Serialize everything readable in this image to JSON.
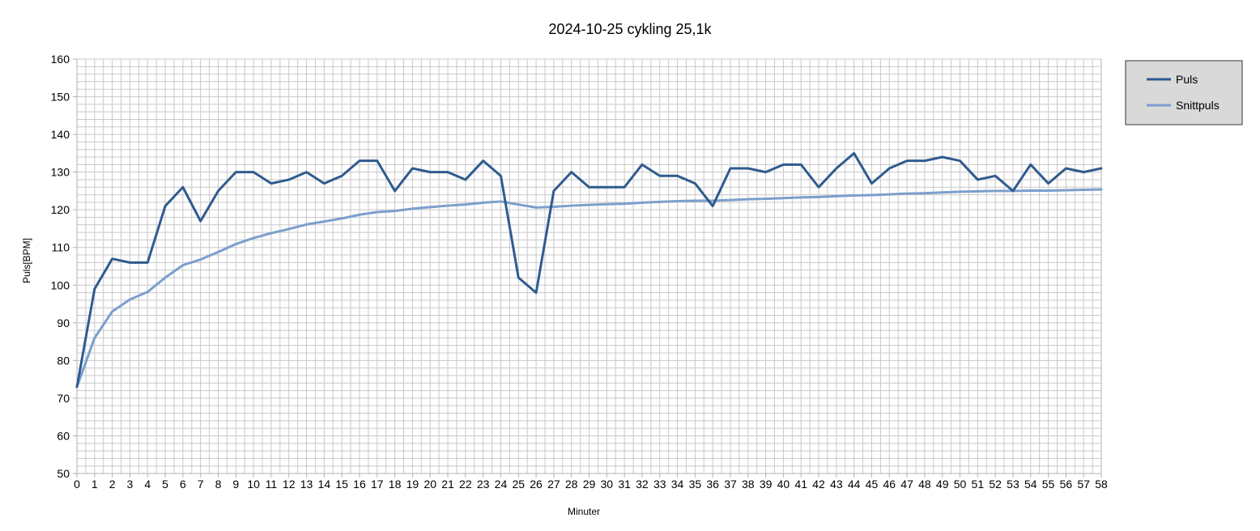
{
  "chart_data": {
    "type": "line",
    "title": "2024-10-25 cykling 25,1k",
    "xlabel": "Minuter",
    "ylabel": "Puls[BPM]",
    "x": [
      0,
      1,
      2,
      3,
      4,
      5,
      6,
      7,
      8,
      9,
      10,
      11,
      12,
      13,
      14,
      15,
      16,
      17,
      18,
      19,
      20,
      21,
      22,
      23,
      24,
      25,
      26,
      27,
      28,
      29,
      30,
      31,
      32,
      33,
      34,
      35,
      36,
      37,
      38,
      39,
      40,
      41,
      42,
      43,
      44,
      45,
      46,
      47,
      48,
      49,
      50,
      51,
      52,
      53,
      54,
      55,
      56,
      57,
      58
    ],
    "xlim": [
      0,
      58
    ],
    "ylim": [
      50,
      160
    ],
    "y_ticks": [
      50,
      60,
      70,
      80,
      90,
      100,
      110,
      120,
      130,
      140,
      150,
      160
    ],
    "grid": true,
    "legend_position": "right",
    "series": [
      {
        "name": "Puls",
        "color": "#2f5b8e",
        "values": [
          73,
          99,
          107,
          106,
          106,
          121,
          126,
          117,
          125,
          130,
          130,
          127,
          128,
          130,
          127,
          129,
          133,
          133,
          125,
          131,
          130,
          130,
          128,
          133,
          129,
          102,
          98,
          125,
          130,
          126,
          126,
          126,
          132,
          129,
          129,
          127,
          121,
          131,
          131,
          130,
          132,
          132,
          126,
          131,
          135,
          127,
          131,
          133,
          133,
          134,
          133,
          128,
          129,
          125,
          132,
          127,
          131,
          130,
          131
        ]
      },
      {
        "name": "Snittpuls",
        "color": "#7b9fcd",
        "values": [
          73,
          86,
          93,
          96.2,
          98.2,
          102,
          105.3,
          106.8,
          108.8,
          110.9,
          112.5,
          113.8,
          114.9,
          116.1,
          116.9,
          117.7,
          118.7,
          119.4,
          119.7,
          120.3,
          120.7,
          121.1,
          121.4,
          121.9,
          122.2,
          121.4,
          120.6,
          120.8,
          121.1,
          121.3,
          121.5,
          121.6,
          121.9,
          122.1,
          122.3,
          122.4,
          122.4,
          122.6,
          122.8,
          122.9,
          123.1,
          123.3,
          123.4,
          123.6,
          123.8,
          123.9,
          124.1,
          124.3,
          124.4,
          124.6,
          124.8,
          124.9,
          125,
          125,
          125.1,
          125.1,
          125.2,
          125.3,
          125.4
        ]
      }
    ]
  }
}
